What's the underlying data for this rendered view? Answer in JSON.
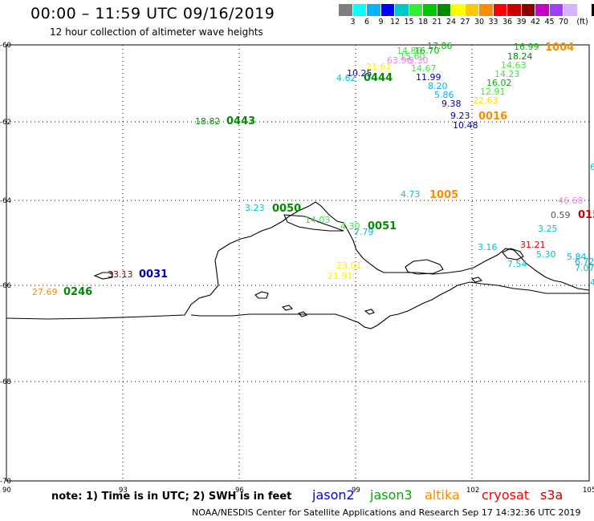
{
  "header": {
    "title": "00:00 – 11:59 UTC 09/16/2019",
    "subtitle": "12 hour collection of altimeter wave heights"
  },
  "color_scale": {
    "colors": [
      "#7f7f7f",
      "#00ffff",
      "#00b4ff",
      "#0000ff",
      "#00c8c8",
      "#33ee33",
      "#00c800",
      "#008c00",
      "#ffff00",
      "#ffc800",
      "#ff8c00",
      "#ff0000",
      "#c80000",
      "#8c0000",
      "#c800c8",
      "#a040ff",
      "#d2b4ff",
      "#ffffff",
      "#000000"
    ],
    "labels": [
      "3",
      "6",
      "9",
      "12",
      "15",
      "18",
      "21",
      "24",
      "27",
      "30",
      "33",
      "36",
      "39",
      "42",
      "45",
      "70",
      "(ft)"
    ],
    "label_positions": [
      1,
      2,
      3,
      4,
      5,
      6,
      7,
      8,
      9,
      10,
      11,
      12,
      13,
      14,
      15,
      16,
      17
    ]
  },
  "axes": {
    "lon_ticks": [
      "90",
      "93",
      "96",
      "99",
      "102",
      "105"
    ],
    "lat_ticks": [
      "-60",
      "-62",
      "-64",
      "-66",
      "-68",
      "-70"
    ]
  },
  "observations": [
    {
      "text": "17.86",
      "color": "#00b400"
    },
    {
      "text": "14.86",
      "color": "#33ee33"
    },
    {
      "text": "16.70",
      "color": "#00b400"
    },
    {
      "text": "15.60",
      "color": "#33ee33"
    },
    {
      "text": "63.96",
      "color": "#ee82ee"
    },
    {
      "text": "5.30",
      "color": "#ee82ee"
    },
    {
      "text": "21.61",
      "color": "#ffee00"
    },
    {
      "text": "14.67",
      "color": "#33ee33"
    },
    {
      "text": "10.25",
      "color": "#0000aa"
    },
    {
      "text": "4.62",
      "color": "#00c8c8"
    },
    {
      "text": "11.99",
      "color": "#0000aa"
    },
    {
      "text": "8.20",
      "color": "#00b4ff"
    },
    {
      "text": "5.86",
      "color": "#00b4ff"
    },
    {
      "text": "9.38",
      "color": "#0000aa"
    },
    {
      "text": "9.23",
      "color": "#0000aa"
    },
    {
      "text": "10.48",
      "color": "#0000aa"
    },
    {
      "text": "16.99",
      "color": "#00b400"
    },
    {
      "text": "18.24",
      "color": "#008c00"
    },
    {
      "text": "14.63",
      "color": "#33ee33"
    },
    {
      "text": "14.23",
      "color": "#33ee33"
    },
    {
      "text": "16.02",
      "color": "#00b400"
    },
    {
      "text": "12.91",
      "color": "#33ee33"
    },
    {
      "text": "22.63",
      "color": "#ffdd00"
    },
    {
      "text": "18.82",
      "color": "#008c00"
    },
    {
      "text": "4.73",
      "color": "#00c8c8"
    },
    {
      "text": "46.68",
      "color": "#ee82ee"
    },
    {
      "text": "0.59",
      "color": "#555555"
    },
    {
      "text": "3.23",
      "color": "#00c8c8"
    },
    {
      "text": "14.03",
      "color": "#33ee33"
    },
    {
      "text": "4.30",
      "color": "#33ee33"
    },
    {
      "text": "7.79",
      "color": "#00b4ff"
    },
    {
      "text": "23.01",
      "color": "#ffee00"
    },
    {
      "text": "21.91",
      "color": "#ffee00"
    },
    {
      "text": "3.16",
      "color": "#00c8c8"
    },
    {
      "text": "31.21",
      "color": "#dd0000"
    },
    {
      "text": "7.54",
      "color": "#00c8c8"
    },
    {
      "text": "3.25",
      "color": "#00c8c8"
    },
    {
      "text": "5.30",
      "color": "#00c8c8"
    },
    {
      "text": "5.84",
      "color": "#00b4ff"
    },
    {
      "text": "6.72",
      "color": "#00b4ff"
    },
    {
      "text": "7.07",
      "color": "#00c8c8"
    },
    {
      "text": "33.13",
      "color": "#8c0000"
    },
    {
      "text": "27.69",
      "color": "#ff8c00"
    },
    {
      "text": "6",
      "color": "#00c8c8"
    },
    {
      "text": "4",
      "color": "#00c8c8"
    }
  ],
  "pass_times": [
    {
      "text": "0444",
      "color": "#008c00"
    },
    {
      "text": "1004",
      "color": "#ff8c00"
    },
    {
      "text": "0016",
      "color": "#ff8c00"
    },
    {
      "text": "0443",
      "color": "#008c00"
    },
    {
      "text": "1005",
      "color": "#ff8c00"
    },
    {
      "text": "015",
      "color": "#c80000"
    },
    {
      "text": "0050",
      "color": "#008c00"
    },
    {
      "text": "0051",
      "color": "#008c00"
    },
    {
      "text": "0031",
      "color": "#0000aa"
    },
    {
      "text": "0246",
      "color": "#008c00"
    }
  ],
  "footer": {
    "note": "note:  1) Time is in UTC;  2) SWH is in feet",
    "credit": "NOAA/NESDIS Center for Satellite Applications and Research    Sep 17 14:32:36 UTC 2019",
    "satellites": [
      {
        "name": "jason2",
        "color": "#0000ff"
      },
      {
        "name": "jason3",
        "color": "#00aa00"
      },
      {
        "name": "altika",
        "color": "#ff8c00"
      },
      {
        "name": "cryosat",
        "color": "#ff0000"
      },
      {
        "name": "s3a",
        "color": "#c80000"
      }
    ]
  }
}
